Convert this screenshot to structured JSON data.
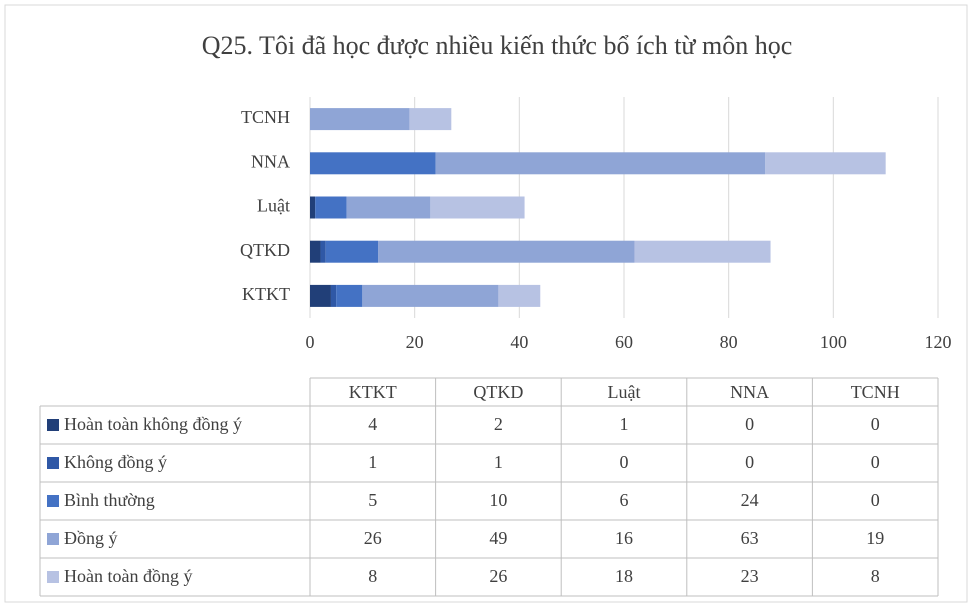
{
  "chart_data": {
    "type": "stacked_bar_horizontal",
    "title": "Q25. Tôi đã học được nhiều kiến thức bổ ích từ môn học",
    "categories": [
      "KTKT",
      "QTKD",
      "Luật",
      "NNA",
      "TCNH"
    ],
    "series": [
      {
        "name": "Hoàn toàn không đồng ý",
        "color": "#213f78",
        "values": [
          4,
          2,
          1,
          0,
          0
        ]
      },
      {
        "name": "Không đồng ý",
        "color": "#2f58a6",
        "values": [
          1,
          1,
          0,
          0,
          0
        ]
      },
      {
        "name": "Bình thường",
        "color": "#4472c4",
        "values": [
          5,
          10,
          6,
          24,
          0
        ]
      },
      {
        "name": "Đồng ý",
        "color": "#8fa5d6",
        "values": [
          26,
          49,
          16,
          63,
          19
        ]
      },
      {
        "name": "Hoàn toàn đồng ý",
        "color": "#b7c2e3",
        "values": [
          8,
          26,
          18,
          23,
          8
        ]
      }
    ],
    "xlim": [
      0,
      120
    ],
    "xticks": [
      0,
      20,
      40,
      60,
      80,
      100,
      120
    ],
    "grid": true,
    "data_table": true
  }
}
